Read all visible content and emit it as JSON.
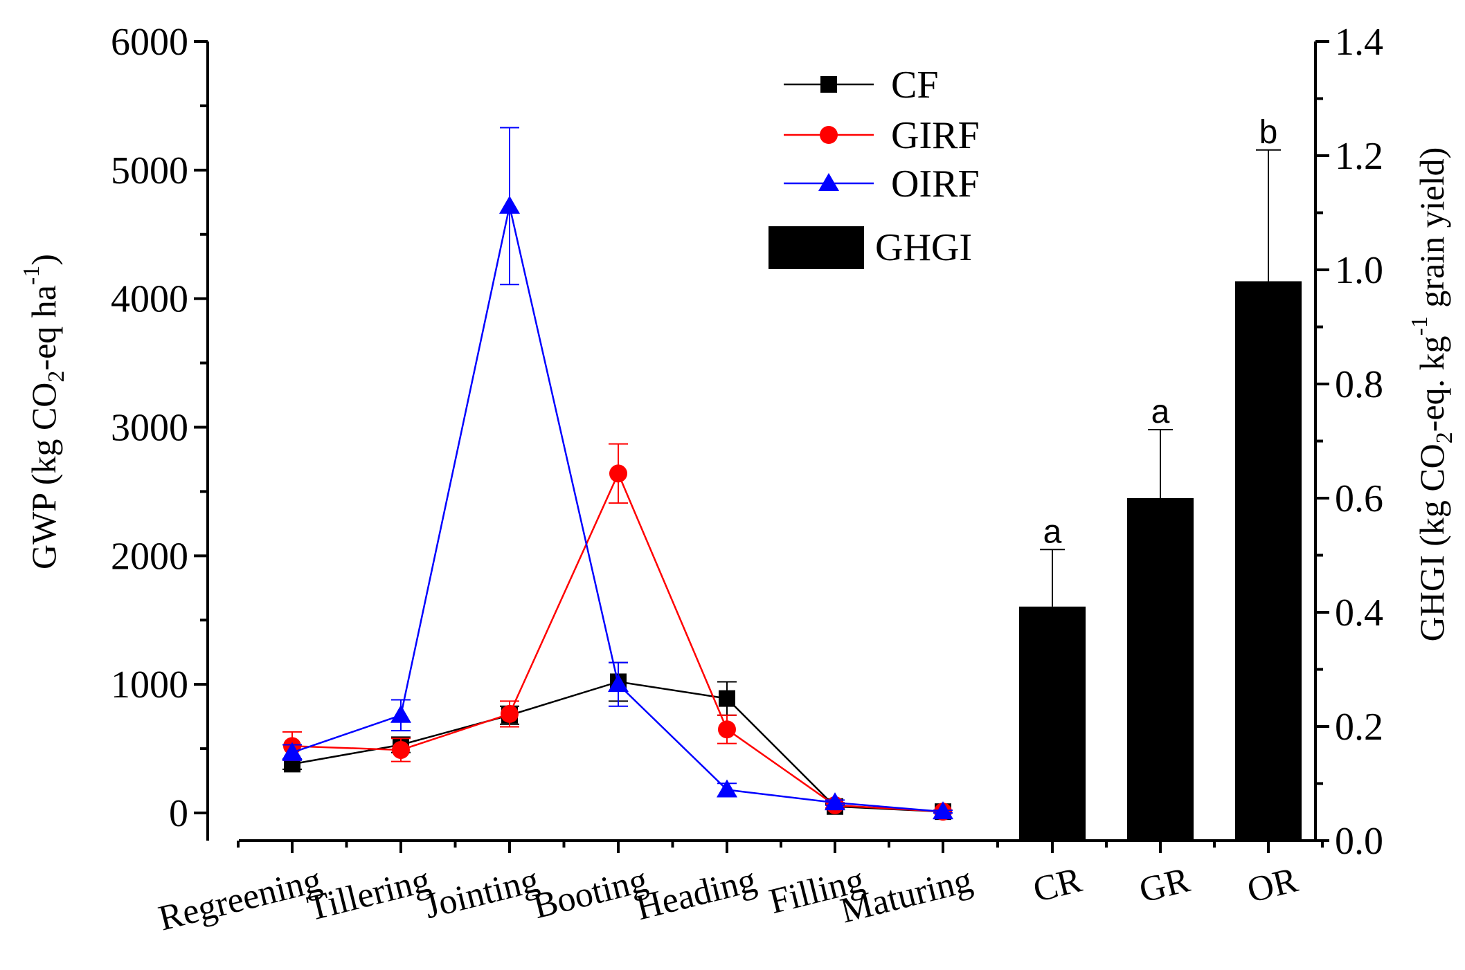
{
  "chart_data": {
    "type": "line+bar",
    "line_chart": {
      "type": "line",
      "categories": [
        "Regreening",
        "Tillering",
        "Jointing",
        "Booting",
        "Heading",
        "Filling",
        "Maturing"
      ],
      "ylabel": "GWP (kg CO2-eq ha-1)",
      "ylabel_parts": {
        "main": "GWP (kg CO",
        "sub": "2",
        "mid": "-eq ha",
        "sup": "-1",
        "end": ")"
      },
      "ylim": [
        0,
        6000
      ],
      "yticks": [
        0,
        1000,
        2000,
        3000,
        4000,
        5000,
        6000
      ],
      "series": [
        {
          "name": "CF",
          "color": "#000000",
          "marker": "square",
          "values": [
            380,
            530,
            760,
            1020,
            890,
            50,
            10
          ],
          "errors": [
            40,
            60,
            70,
            150,
            130,
            20,
            10
          ]
        },
        {
          "name": "GIRF",
          "color": "#ff0000",
          "marker": "circle",
          "values": [
            520,
            490,
            770,
            2640,
            650,
            60,
            10
          ],
          "errors": [
            110,
            90,
            100,
            230,
            110,
            20,
            10
          ]
        },
        {
          "name": "OIRF",
          "color": "#0000ff",
          "marker": "triangle",
          "values": [
            470,
            760,
            4720,
            1000,
            180,
            80,
            10
          ],
          "errors": [
            60,
            120,
            610,
            170,
            50,
            20,
            10
          ]
        }
      ]
    },
    "bar_chart": {
      "type": "bar",
      "categories": [
        "CR",
        "GR",
        "OR"
      ],
      "values": [
        0.41,
        0.6,
        0.98
      ],
      "errors": [
        0.1,
        0.12,
        0.23
      ],
      "significance": [
        "a",
        "a",
        "b"
      ],
      "color": "#000000",
      "series_name": "GHGI",
      "ylabel": "GHGI (kg CO2-eq. kg-1 grain yield)",
      "ylabel_parts": {
        "main": "GHGI (kg CO",
        "sub": "2",
        "mid": "-eq. kg",
        "sup": "-1",
        "end": " grain yield)"
      },
      "ylim": [
        0,
        1.4
      ],
      "yticks": [
        "0.0",
        "0.2",
        "0.4",
        "0.6",
        "0.8",
        "1.0",
        "1.2",
        "1.4"
      ]
    },
    "legend": [
      "CF",
      "GIRF",
      "OIRF",
      "GHGI"
    ],
    "legend_position": "top-center"
  }
}
